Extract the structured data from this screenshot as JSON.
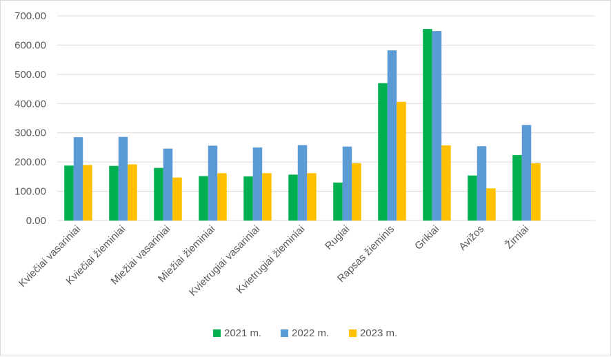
{
  "chart_data": {
    "type": "bar",
    "title": "",
    "xlabel": "",
    "ylabel": "",
    "ylim": [
      0,
      700
    ],
    "yticks": [
      "0.00",
      "100.00",
      "200.00",
      "300.00",
      "400.00",
      "500.00",
      "600.00",
      "700.00"
    ],
    "grid": true,
    "legend_position": "bottom",
    "categories": [
      "Kviečiai vasariniai",
      "Kviečiai žieminiai",
      "Miežiai vasariniai",
      "Miežiai žieminiai",
      "Kvietrugiai vasariniai",
      "Kvietrugiai žieminiai",
      "Rugiai",
      "Rapsas žieminis",
      "Grikiai",
      "Avižos",
      "Žirniai"
    ],
    "series": [
      {
        "name": "2021 m.",
        "color": "#00b050",
        "values": [
          188,
          187,
          180,
          152,
          151,
          157,
          130,
          470,
          655,
          154,
          224
        ]
      },
      {
        "name": "2022 m.",
        "color": "#5b9bd5",
        "values": [
          285,
          286,
          246,
          256,
          250,
          258,
          253,
          582,
          648,
          254,
          327
        ]
      },
      {
        "name": "2023 m.",
        "color": "#ffc000",
        "values": [
          190,
          192,
          147,
          162,
          162,
          162,
          196,
          406,
          257,
          110,
          196
        ]
      }
    ]
  }
}
